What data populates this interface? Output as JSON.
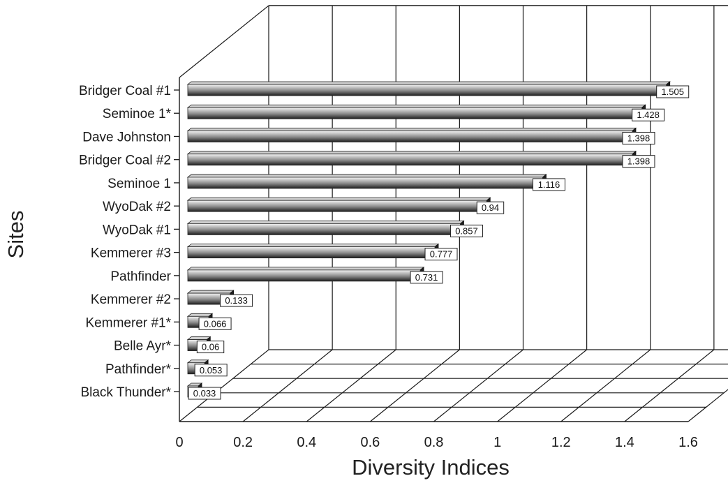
{
  "chart_data": {
    "type": "bar",
    "orientation": "horizontal",
    "style": "3d",
    "title": "",
    "xlabel": "Diversity Indices",
    "ylabel": "Sites",
    "xlim": [
      0,
      1.6
    ],
    "xticks": [
      "0",
      "0.2",
      "0.4",
      "0.6",
      "0.8",
      "1",
      "1.2",
      "1.4",
      "1.6"
    ],
    "grid": true,
    "categories": [
      "Bridger Coal #1",
      "Seminoe 1*",
      "Dave Johnston",
      "Bridger Coal #2",
      "Seminoe 1",
      "WyoDak #2",
      "WyoDak #1",
      "Kemmerer #3",
      "Pathfinder",
      "Kemmerer #2",
      "Kemmerer #1*",
      "Belle Ayr*",
      "Pathfinder*",
      "Black Thunder*"
    ],
    "values": [
      1.505,
      1.428,
      1.398,
      1.398,
      1.116,
      0.94,
      0.857,
      0.777,
      0.731,
      0.133,
      0.066,
      0.06,
      0.053,
      0.033
    ],
    "value_labels": [
      "1.505",
      "1.428",
      "1.398",
      "1.398",
      "1.116",
      "0.94",
      "0.857",
      "0.777",
      "0.731",
      "0.133",
      "0.066",
      "0.06",
      "0.053",
      "0.033"
    ],
    "colors": {
      "bar_light": "#f2f2f2",
      "bar_mid": "#9a9a9a",
      "bar_dark": "#2a2a2a",
      "grid": "#1a1a1a"
    }
  }
}
